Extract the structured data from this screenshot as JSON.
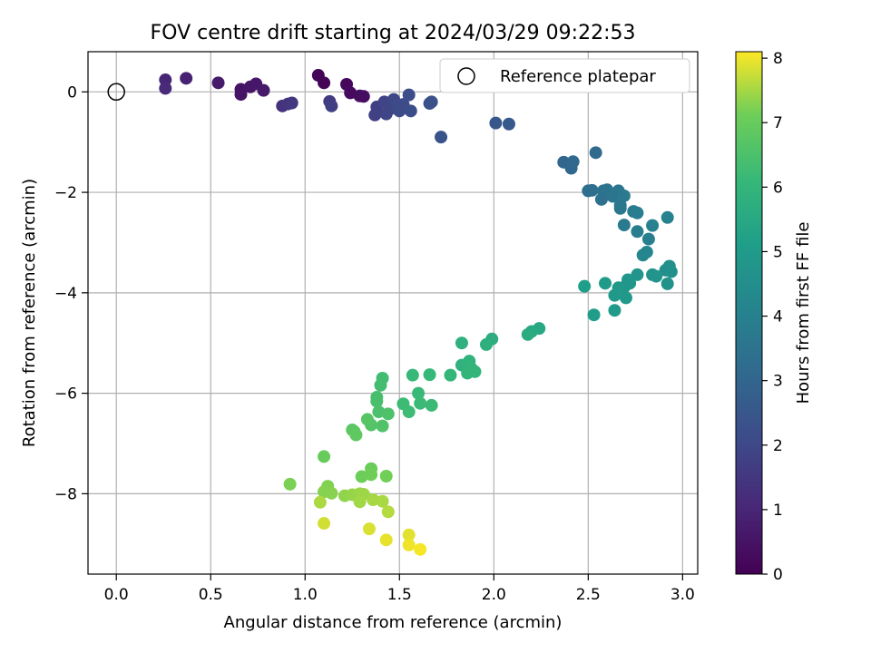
{
  "chart_data": {
    "type": "scatter",
    "title": "FOV centre drift starting at 2024/03/29 09:22:53",
    "xlabel": "Angular distance from reference (arcmin)",
    "ylabel": "Rotation from reference (arcmin)",
    "xlim": [
      -0.15,
      3.08
    ],
    "ylim": [
      -9.6,
      0.8
    ],
    "x_ticks": [
      0.0,
      0.5,
      1.0,
      1.5,
      2.0,
      2.5,
      3.0
    ],
    "x_tick_labels": [
      "0.0",
      "0.5",
      "1.0",
      "1.5",
      "2.0",
      "2.5",
      "3.0"
    ],
    "y_ticks": [
      0,
      -2,
      -4,
      -6,
      -8
    ],
    "y_tick_labels": [
      "0",
      "−2",
      "−4",
      "−6",
      "−8"
    ],
    "grid": true,
    "legend": {
      "placement": "top-right",
      "entries": [
        "Reference platepar"
      ]
    },
    "colorbar": {
      "label": "Hours from first FF file",
      "range": [
        0,
        8.1
      ],
      "ticks": [
        0,
        1,
        2,
        3,
        4,
        5,
        6,
        7,
        8
      ],
      "tick_labels": [
        "0",
        "1",
        "2",
        "3",
        "4",
        "5",
        "6",
        "7",
        "8"
      ],
      "colormap": "viridis"
    },
    "reference_point": {
      "x": 0.0,
      "y": 0.0
    },
    "series": [
      {
        "points": [
          {
            "x": 1.07,
            "y": 0.33,
            "h": 0.05
          },
          {
            "x": 1.1,
            "y": 0.18,
            "h": 0.1
          },
          {
            "x": 1.22,
            "y": 0.15,
            "h": 0.2
          },
          {
            "x": 1.24,
            "y": -0.02,
            "h": 0.25
          },
          {
            "x": 1.29,
            "y": -0.08,
            "h": 0.3
          },
          {
            "x": 1.31,
            "y": -0.09,
            "h": 0.35
          },
          {
            "x": 0.66,
            "y": 0.05,
            "h": 0.45
          },
          {
            "x": 0.66,
            "y": -0.05,
            "h": 0.5
          },
          {
            "x": 0.71,
            "y": 0.1,
            "h": 0.55
          },
          {
            "x": 0.74,
            "y": 0.16,
            "h": 0.6
          },
          {
            "x": 0.78,
            "y": 0.03,
            "h": 0.65
          },
          {
            "x": 0.54,
            "y": 0.18,
            "h": 0.7
          },
          {
            "x": 0.37,
            "y": 0.27,
            "h": 0.9
          },
          {
            "x": 0.26,
            "y": 0.24,
            "h": 1.0
          },
          {
            "x": 0.26,
            "y": 0.07,
            "h": 1.1
          },
          {
            "x": 0.88,
            "y": -0.28,
            "h": 1.35
          },
          {
            "x": 0.91,
            "y": -0.24,
            "h": 1.45
          },
          {
            "x": 0.93,
            "y": -0.22,
            "h": 1.5
          },
          {
            "x": 1.13,
            "y": -0.19,
            "h": 1.6
          },
          {
            "x": 1.14,
            "y": -0.28,
            "h": 1.7
          },
          {
            "x": 1.37,
            "y": -0.46,
            "h": 1.75
          },
          {
            "x": 1.38,
            "y": -0.3,
            "h": 1.8
          },
          {
            "x": 1.42,
            "y": -0.2,
            "h": 1.85
          },
          {
            "x": 1.43,
            "y": -0.44,
            "h": 1.9
          },
          {
            "x": 1.45,
            "y": -0.34,
            "h": 1.95
          },
          {
            "x": 1.47,
            "y": -0.15,
            "h": 2.0
          },
          {
            "x": 1.49,
            "y": -0.26,
            "h": 2.05
          },
          {
            "x": 1.5,
            "y": -0.38,
            "h": 2.1
          },
          {
            "x": 1.52,
            "y": -0.25,
            "h": 2.12
          },
          {
            "x": 1.55,
            "y": -0.06,
            "h": 2.15
          },
          {
            "x": 1.56,
            "y": -0.38,
            "h": 2.2
          },
          {
            "x": 1.66,
            "y": -0.23,
            "h": 2.25
          },
          {
            "x": 1.67,
            "y": -0.2,
            "h": 2.3
          },
          {
            "x": 1.72,
            "y": -0.9,
            "h": 2.4
          },
          {
            "x": 2.01,
            "y": -0.62,
            "h": 2.55
          },
          {
            "x": 2.08,
            "y": -0.64,
            "h": 2.6
          },
          {
            "x": 2.37,
            "y": -1.4,
            "h": 3.0
          },
          {
            "x": 2.41,
            "y": -1.52,
            "h": 3.05
          },
          {
            "x": 2.42,
            "y": -1.39,
            "h": 3.1
          },
          {
            "x": 2.54,
            "y": -1.21,
            "h": 3.2
          },
          {
            "x": 2.5,
            "y": -1.97,
            "h": 3.3
          },
          {
            "x": 2.52,
            "y": -1.96,
            "h": 3.35
          },
          {
            "x": 2.57,
            "y": -2.14,
            "h": 3.4
          },
          {
            "x": 2.58,
            "y": -1.97,
            "h": 3.45
          },
          {
            "x": 2.6,
            "y": -1.95,
            "h": 3.5
          },
          {
            "x": 2.63,
            "y": -2.08,
            "h": 3.55
          },
          {
            "x": 2.66,
            "y": -1.97,
            "h": 3.6
          },
          {
            "x": 2.67,
            "y": -2.26,
            "h": 3.62
          },
          {
            "x": 2.67,
            "y": -2.32,
            "h": 3.65
          },
          {
            "x": 2.69,
            "y": -2.07,
            "h": 3.7
          },
          {
            "x": 2.69,
            "y": -2.65,
            "h": 3.75
          },
          {
            "x": 2.74,
            "y": -2.38,
            "h": 3.8
          },
          {
            "x": 2.76,
            "y": -2.41,
            "h": 3.85
          },
          {
            "x": 2.76,
            "y": -2.78,
            "h": 3.9
          },
          {
            "x": 2.82,
            "y": -2.93,
            "h": 3.95
          },
          {
            "x": 2.84,
            "y": -2.66,
            "h": 4.0
          },
          {
            "x": 2.92,
            "y": -2.5,
            "h": 4.05
          },
          {
            "x": 2.79,
            "y": -3.25,
            "h": 4.2
          },
          {
            "x": 2.81,
            "y": -3.19,
            "h": 4.25
          },
          {
            "x": 2.91,
            "y": -3.55,
            "h": 4.5
          },
          {
            "x": 2.93,
            "y": -3.47,
            "h": 4.55
          },
          {
            "x": 2.94,
            "y": -3.58,
            "h": 4.6
          },
          {
            "x": 2.92,
            "y": -3.82,
            "h": 4.65
          },
          {
            "x": 2.84,
            "y": -3.64,
            "h": 4.7
          },
          {
            "x": 2.86,
            "y": -3.67,
            "h": 4.72
          },
          {
            "x": 2.76,
            "y": -3.64,
            "h": 4.75
          },
          {
            "x": 2.71,
            "y": -3.74,
            "h": 4.8
          },
          {
            "x": 2.72,
            "y": -3.81,
            "h": 4.82
          },
          {
            "x": 2.69,
            "y": -3.89,
            "h": 4.85
          },
          {
            "x": 2.7,
            "y": -4.1,
            "h": 4.88
          },
          {
            "x": 2.66,
            "y": -3.9,
            "h": 4.9
          },
          {
            "x": 2.64,
            "y": -4.05,
            "h": 4.92
          },
          {
            "x": 2.64,
            "y": -4.35,
            "h": 4.95
          },
          {
            "x": 2.59,
            "y": -3.81,
            "h": 5.0
          },
          {
            "x": 2.53,
            "y": -4.44,
            "h": 5.05
          },
          {
            "x": 2.48,
            "y": -3.87,
            "h": 5.1
          },
          {
            "x": 2.24,
            "y": -4.71,
            "h": 5.5
          },
          {
            "x": 2.2,
            "y": -4.77,
            "h": 5.55
          },
          {
            "x": 2.18,
            "y": -4.83,
            "h": 5.6
          },
          {
            "x": 1.99,
            "y": -4.92,
            "h": 5.7
          },
          {
            "x": 1.96,
            "y": -5.03,
            "h": 5.75
          },
          {
            "x": 1.83,
            "y": -5.0,
            "h": 5.8
          },
          {
            "x": 1.83,
            "y": -5.44,
            "h": 5.85
          },
          {
            "x": 1.86,
            "y": -5.48,
            "h": 5.9
          },
          {
            "x": 1.87,
            "y": -5.36,
            "h": 5.92
          },
          {
            "x": 1.88,
            "y": -5.5,
            "h": 5.95
          },
          {
            "x": 1.86,
            "y": -5.6,
            "h": 5.97
          },
          {
            "x": 1.9,
            "y": -5.57,
            "h": 6.0
          },
          {
            "x": 1.77,
            "y": -5.64,
            "h": 6.05
          },
          {
            "x": 1.66,
            "y": -5.63,
            "h": 6.1
          },
          {
            "x": 1.57,
            "y": -5.64,
            "h": 6.12
          },
          {
            "x": 1.6,
            "y": -6.0,
            "h": 6.15
          },
          {
            "x": 1.61,
            "y": -6.2,
            "h": 6.18
          },
          {
            "x": 1.67,
            "y": -6.24,
            "h": 6.2
          },
          {
            "x": 1.52,
            "y": -6.21,
            "h": 6.22
          },
          {
            "x": 1.55,
            "y": -6.37,
            "h": 6.25
          },
          {
            "x": 1.41,
            "y": -5.7,
            "h": 6.3
          },
          {
            "x": 1.4,
            "y": -5.84,
            "h": 6.35
          },
          {
            "x": 1.38,
            "y": -6.08,
            "h": 6.4
          },
          {
            "x": 1.38,
            "y": -6.16,
            "h": 6.45
          },
          {
            "x": 1.39,
            "y": -6.37,
            "h": 6.5
          },
          {
            "x": 1.44,
            "y": -6.41,
            "h": 6.55
          },
          {
            "x": 1.41,
            "y": -6.65,
            "h": 6.6
          },
          {
            "x": 1.35,
            "y": -6.63,
            "h": 6.65
          },
          {
            "x": 1.33,
            "y": -6.52,
            "h": 6.7
          },
          {
            "x": 1.25,
            "y": -6.73,
            "h": 6.75
          },
          {
            "x": 1.26,
            "y": -6.76,
            "h": 6.8
          },
          {
            "x": 1.27,
            "y": -6.83,
            "h": 6.85
          },
          {
            "x": 1.1,
            "y": -7.26,
            "h": 7.0
          },
          {
            "x": 1.35,
            "y": -7.5,
            "h": 7.05
          },
          {
            "x": 1.3,
            "y": -7.66,
            "h": 7.1
          },
          {
            "x": 1.35,
            "y": -7.62,
            "h": 7.12
          },
          {
            "x": 1.43,
            "y": -7.65,
            "h": 7.15
          },
          {
            "x": 0.92,
            "y": -7.81,
            "h": 7.2
          },
          {
            "x": 1.12,
            "y": -7.85,
            "h": 7.25
          },
          {
            "x": 1.1,
            "y": -7.96,
            "h": 7.28
          },
          {
            "x": 1.14,
            "y": -7.99,
            "h": 7.3
          },
          {
            "x": 1.21,
            "y": -8.04,
            "h": 7.35
          },
          {
            "x": 1.25,
            "y": -8.02,
            "h": 7.4
          },
          {
            "x": 1.29,
            "y": -8.0,
            "h": 7.42
          },
          {
            "x": 1.31,
            "y": -8.01,
            "h": 7.45
          },
          {
            "x": 1.29,
            "y": -8.16,
            "h": 7.48
          },
          {
            "x": 1.36,
            "y": -8.12,
            "h": 7.5
          },
          {
            "x": 1.41,
            "y": -8.15,
            "h": 7.52
          },
          {
            "x": 1.08,
            "y": -8.17,
            "h": 7.55
          },
          {
            "x": 1.44,
            "y": -8.36,
            "h": 7.6
          },
          {
            "x": 1.1,
            "y": -8.59,
            "h": 7.8
          },
          {
            "x": 1.34,
            "y": -8.7,
            "h": 7.85
          },
          {
            "x": 1.55,
            "y": -8.82,
            "h": 7.9
          },
          {
            "x": 1.43,
            "y": -8.92,
            "h": 7.95
          },
          {
            "x": 1.55,
            "y": -9.02,
            "h": 8.0
          },
          {
            "x": 1.61,
            "y": -9.11,
            "h": 8.05
          }
        ]
      }
    ]
  }
}
